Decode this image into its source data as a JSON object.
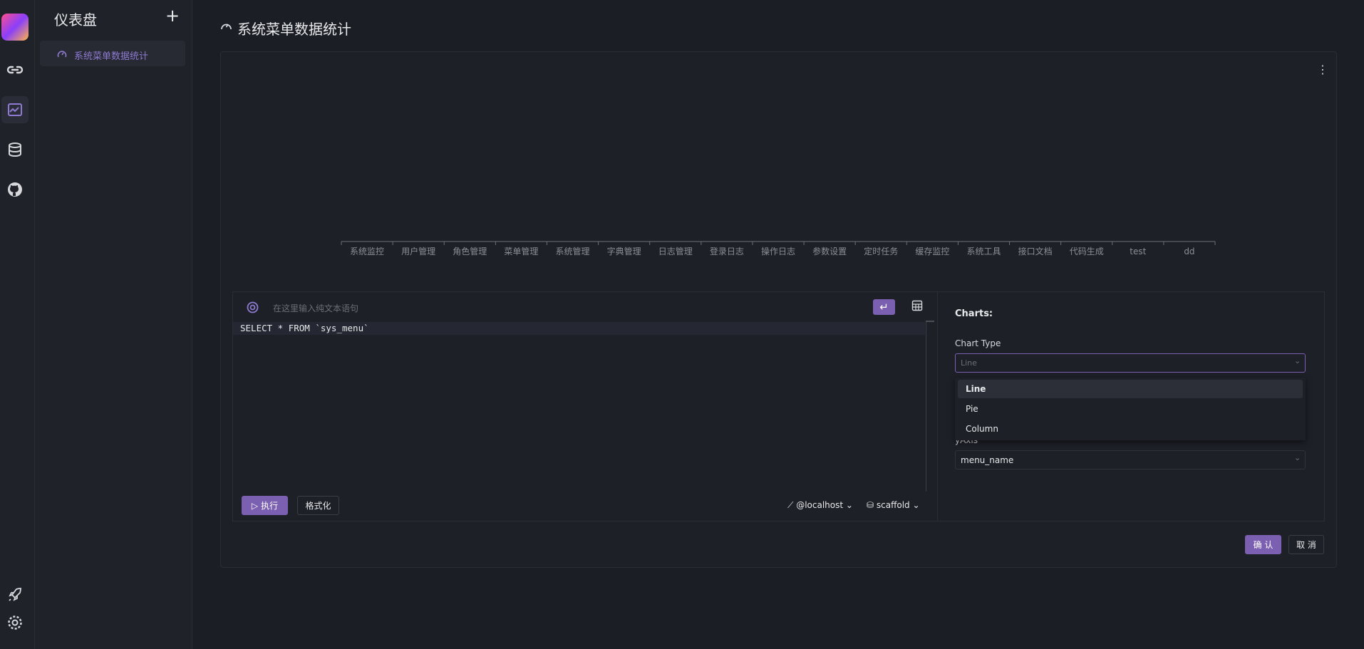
{
  "nav": {
    "title": "仪表盘",
    "add": "+",
    "items": [
      "系统菜单数据统计"
    ]
  },
  "page": {
    "title": "系统菜单数据统计"
  },
  "chart": {
    "categories": [
      "系统监控",
      "用户管理",
      "角色管理",
      "菜单管理",
      "系统管理",
      "字典管理",
      "日志管理",
      "登录日志",
      "操作日志",
      "参数设置",
      "定时任务",
      "缓存监控",
      "系统工具",
      "接口文档",
      "代码生成",
      "test",
      "dd"
    ]
  },
  "editor": {
    "placeholder": "在这里输入纯文本语句",
    "query": "SELECT * FROM `sys_menu`",
    "run": "执行",
    "format": "格式化",
    "connection": "@localhost",
    "database": "scaffold"
  },
  "settings": {
    "heading": "Charts:",
    "chart_type_label": "Chart Type",
    "chart_type_value": "Line",
    "options": [
      "Line",
      "Pie",
      "Column"
    ],
    "y_axis_label": "yAxis",
    "y_axis_value": "menu_name"
  },
  "actions": {
    "confirm": "确 认",
    "cancel": "取 消"
  }
}
